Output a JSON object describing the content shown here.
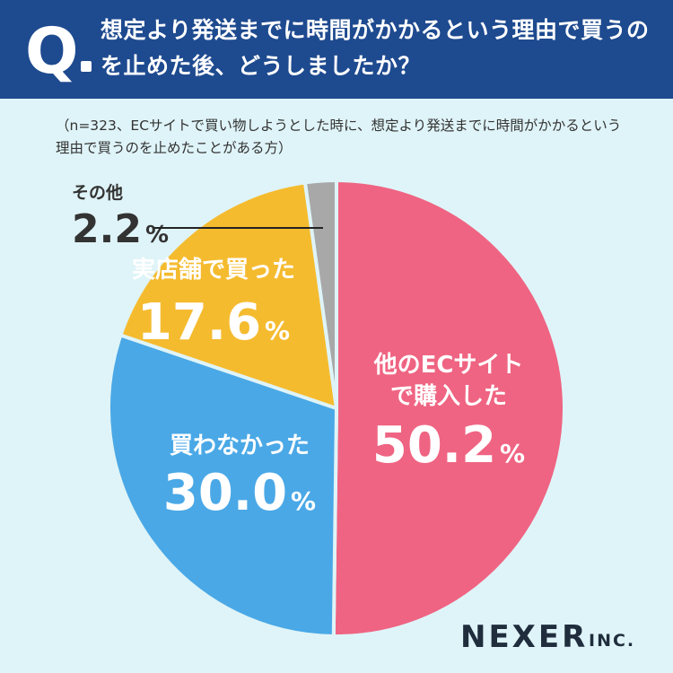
{
  "header": {
    "q_letter": "Q",
    "question": "想定より発送までに時間がかかるという理由で買うのを止めた後、どうしましたか？"
  },
  "note": "（n=323、ECサイトで買い物しようとした時に、想定より発送までに時間がかかるという理由で買うのを止めたことがある方）",
  "logo": {
    "main": "NEXER",
    "sub": "INC."
  },
  "colors": {
    "header_bg": "#1e4a8f",
    "background": "#dff4f8",
    "slice_other_ec": "#ef6482",
    "slice_not_bought": "#4aa8e6",
    "slice_store": "#f5bb2f",
    "slice_other": "#a8a8a8"
  },
  "chart_data": {
    "type": "pie",
    "unit": "%",
    "slices": [
      {
        "label": "他のECサイトで購入した",
        "label_lines": [
          "他のECサイト",
          "で購入した"
        ],
        "value": 50.2,
        "value_text": "50.2",
        "color": "#ef6482",
        "text_color": "#ffffff"
      },
      {
        "label": "買わなかった",
        "label_lines": [
          "買わなかった"
        ],
        "value": 30.0,
        "value_text": "30.0",
        "color": "#4aa8e6",
        "text_color": "#ffffff"
      },
      {
        "label": "実店舗で買った",
        "label_lines": [
          "実店舗で買った"
        ],
        "value": 17.6,
        "value_text": "17.6",
        "color": "#f5bb2f",
        "text_color": "#ffffff"
      },
      {
        "label": "その他",
        "label_lines": [
          "その他"
        ],
        "value": 2.2,
        "value_text": "2.2",
        "color": "#a8a8a8",
        "text_color": "#333333"
      }
    ]
  }
}
